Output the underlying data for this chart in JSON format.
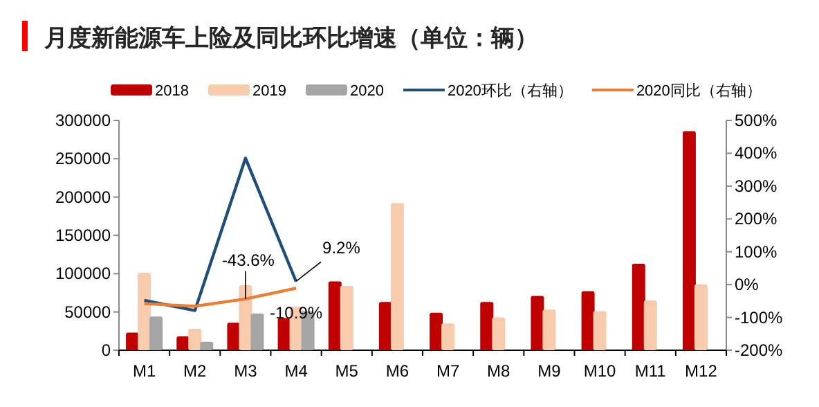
{
  "chart_data": {
    "type": "bar",
    "title": "月度新能源车上险及同比环比增速（单位：辆）",
    "categories": [
      "M1",
      "M2",
      "M3",
      "M4",
      "M5",
      "M6",
      "M7",
      "M8",
      "M9",
      "M10",
      "M11",
      "M12"
    ],
    "series": [
      {
        "name": "2018",
        "color": "#c00000",
        "values": [
          23000,
          18000,
          36000,
          42000,
          90000,
          63000,
          49000,
          63000,
          71000,
          77000,
          113000,
          286000
        ]
      },
      {
        "name": "2019",
        "color": "#f8cbad",
        "values": [
          101000,
          28000,
          85000,
          57000,
          84000,
          192000,
          35000,
          43000,
          53000,
          51000,
          65000,
          86000
        ]
      },
      {
        "name": "2020",
        "color": "#a5a5a5",
        "values": [
          44000,
          11000,
          48000,
          51000,
          null,
          null,
          null,
          null,
          null,
          null,
          null,
          null
        ]
      },
      {
        "name": "2020环比（右轴）",
        "type": "line",
        "axis": "y2",
        "color": "#1f4e79",
        "values": [
          -48,
          -79,
          385,
          9.2,
          null,
          null,
          null,
          null,
          null,
          null,
          null,
          null
        ]
      },
      {
        "name": "2020同比（右轴）",
        "type": "line",
        "axis": "y2",
        "color": "#ed7d31",
        "values": [
          -58,
          -66,
          -43.6,
          -10.9,
          null,
          null,
          null,
          null,
          null,
          null,
          null,
          null
        ]
      }
    ],
    "ylim": [
      0,
      300000
    ],
    "yticks": [
      0,
      50000,
      100000,
      150000,
      200000,
      250000,
      300000
    ],
    "y2lim": [
      -200,
      500
    ],
    "y2ticks": [
      {
        "value": -200,
        "label": "-200%"
      },
      {
        "value": -100,
        "label": "-100%"
      },
      {
        "value": 0,
        "label": "0%"
      },
      {
        "value": 100,
        "label": "100%"
      },
      {
        "value": 200,
        "label": "200%"
      },
      {
        "value": 300,
        "label": "300%"
      },
      {
        "value": 400,
        "label": "400%"
      },
      {
        "value": 500,
        "label": "500%"
      }
    ],
    "annotations": [
      {
        "text": "-43.6%",
        "x": "M3",
        "y": 67000
      },
      {
        "text": "-10.9%",
        "x": "M4",
        "y": 81000
      },
      {
        "text": "9.2%",
        "x": "M4",
        "y": 90000
      }
    ],
    "legend": "top",
    "grid": false
  }
}
